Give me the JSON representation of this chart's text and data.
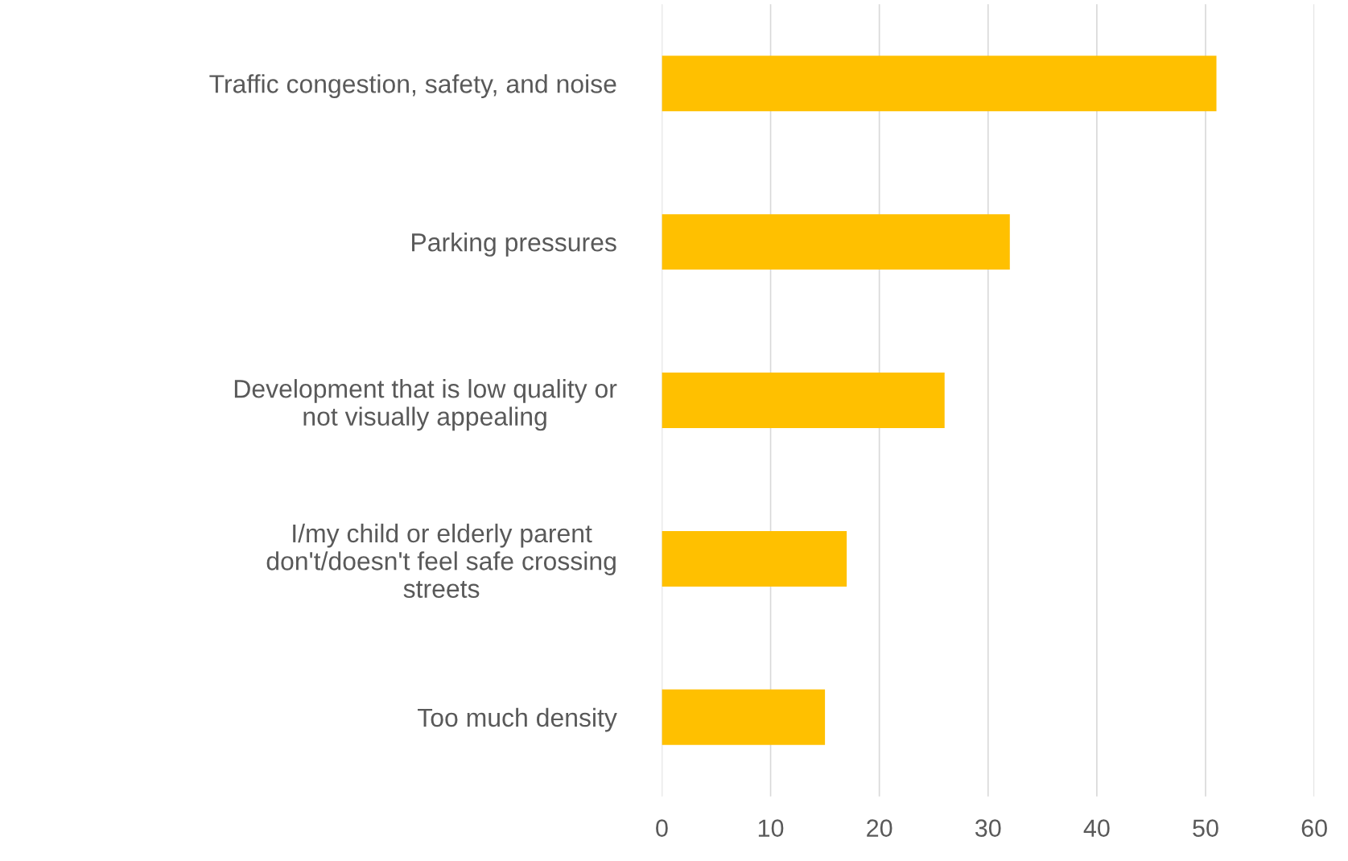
{
  "chart_data": {
    "type": "bar",
    "orientation": "horizontal",
    "categories": [
      "Traffic congestion, safety, and noise",
      "Parking pressures",
      "Development that is low quality or\nnot visually appealing",
      "I/my child or elderly parent\ndon't/doesn't feel safe crossing\nstreets",
      "Too much density"
    ],
    "values": [
      51,
      32,
      26,
      17,
      15
    ],
    "color": "#ffc000",
    "xlim": [
      0,
      60
    ],
    "xticks": [
      0,
      10,
      20,
      30,
      40,
      50,
      60
    ],
    "grid": "x",
    "legend": false
  }
}
